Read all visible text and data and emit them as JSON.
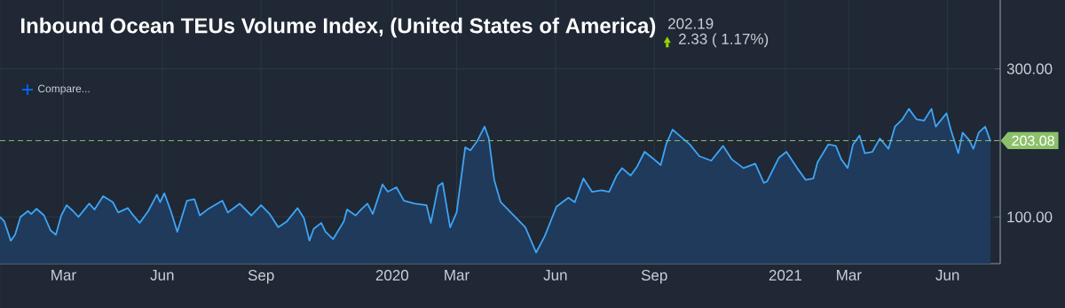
{
  "chart_data": {
    "type": "area",
    "title": "Inbound Ocean TEUs Volume Index, (United States of America)",
    "annotations": [
      "202.19",
      "2.33 ( 1.17%)",
      "Compare..."
    ],
    "x": [
      "2019-01-01",
      "2019-01-05",
      "2019-01-11",
      "2019-01-15",
      "2019-01-20",
      "2019-01-27",
      "2019-01-30",
      "2019-02-04",
      "2019-02-11",
      "2019-02-17",
      "2019-02-22",
      "2019-02-27",
      "2019-03-04",
      "2019-03-10",
      "2019-03-15",
      "2019-03-25",
      "2019-03-30",
      "2019-04-07",
      "2019-04-16",
      "2019-04-21",
      "2019-04-30",
      "2019-05-04",
      "2019-05-11",
      "2019-05-19",
      "2019-05-27",
      "2019-05-30",
      "2019-06-03",
      "2019-06-09",
      "2019-06-15",
      "2019-06-24",
      "2019-07-01",
      "2019-07-06",
      "2019-07-13",
      "2019-07-27",
      "2019-08-01",
      "2019-08-12",
      "2019-08-23",
      "2019-09-01",
      "2019-09-09",
      "2019-09-17",
      "2019-09-25",
      "2019-10-05",
      "2019-10-11",
      "2019-10-16",
      "2019-10-20",
      "2019-10-27",
      "2019-10-31",
      "2019-11-07",
      "2019-11-17",
      "2019-11-20",
      "2019-11-28",
      "2019-12-03",
      "2019-12-09",
      "2019-12-14",
      "2019-12-23",
      "2019-12-28",
      "2020-01-05",
      "2020-01-12",
      "2020-01-22",
      "2020-02-02",
      "2020-02-06",
      "2020-02-13",
      "2020-02-17",
      "2020-02-24",
      "2020-03-01",
      "2020-03-09",
      "2020-03-14",
      "2020-03-20",
      "2020-03-27",
      "2020-03-31",
      "2020-04-05",
      "2020-04-11",
      "2020-05-04",
      "2020-05-14",
      "2020-05-22",
      "2020-06-02",
      "2020-06-13",
      "2020-06-19",
      "2020-06-27",
      "2020-07-05",
      "2020-07-14",
      "2020-07-21",
      "2020-07-28",
      "2020-08-02",
      "2020-08-10",
      "2020-08-16",
      "2020-08-23",
      "2020-08-30",
      "2020-09-07",
      "2020-09-12",
      "2020-09-18",
      "2020-09-26",
      "2020-10-04",
      "2020-10-13",
      "2020-10-24",
      "2020-11-04",
      "2020-11-12",
      "2020-11-23",
      "2020-12-04",
      "2020-12-12",
      "2020-12-15",
      "2020-12-26",
      "2021-01-02",
      "2021-01-12",
      "2021-01-20",
      "2021-01-27",
      "2021-01-31",
      "2021-02-10",
      "2021-02-17",
      "2021-02-22",
      "2021-02-28",
      "2021-03-05",
      "2021-03-11",
      "2021-03-16",
      "2021-03-23",
      "2021-03-30",
      "2021-04-07",
      "2021-04-13",
      "2021-04-20",
      "2021-04-26",
      "2021-05-03",
      "2021-05-10",
      "2021-05-17",
      "2021-05-21",
      "2021-05-31",
      "2021-06-04",
      "2021-06-11",
      "2021-06-15",
      "2021-06-21",
      "2021-06-25",
      "2021-06-30",
      "2021-07-06",
      "2021-07-11"
    ],
    "series": [
      {
        "color": "#3ea5f6",
        "values": [
          100,
          94,
          68,
          76,
          100,
          108,
          104,
          111,
          102,
          82,
          76,
          102,
          116,
          108,
          100,
          118,
          110,
          128,
          120,
          106,
          112,
          104,
          92,
          108,
          130,
          120,
          132,
          108,
          80,
          122,
          124,
          102,
          110,
          122,
          106,
          118,
          102,
          116,
          104,
          86,
          94,
          112,
          98,
          68,
          84,
          92,
          80,
          70,
          94,
          110,
          102,
          110,
          118,
          104,
          144,
          134,
          140,
          122,
          118,
          116,
          92,
          142,
          146,
          86,
          106,
          194,
          190,
          202,
          222,
          206,
          150,
          120,
          86,
          52,
          74,
          114,
          126,
          120,
          152,
          134,
          136,
          134,
          156,
          166,
          156,
          168,
          188,
          180,
          170,
          198,
          218,
          208,
          198,
          182,
          176,
          196,
          178,
          166,
          172,
          146,
          148,
          180,
          188,
          166,
          150,
          152,
          174,
          198,
          196,
          178,
          166,
          198,
          210,
          186,
          188,
          206,
          192,
          222,
          232,
          246,
          232,
          230,
          246,
          222,
          240,
          218,
          186,
          214,
          204,
          192,
          214,
          222,
          202
        ]
      }
    ],
    "xlim": [
      "2019-01-01",
      "2021-07-20"
    ],
    "xticks": [
      {
        "value": "2019-03-01",
        "label": "Mar"
      },
      {
        "value": "2019-06-01",
        "label": "Jun"
      },
      {
        "value": "2019-09-01",
        "label": "Sep"
      },
      {
        "value": "2020-01-01",
        "label": "2020"
      },
      {
        "value": "2020-03-01",
        "label": "Mar"
      },
      {
        "value": "2020-06-01",
        "label": "Jun"
      },
      {
        "value": "2020-09-01",
        "label": "Sep"
      },
      {
        "value": "2021-01-01",
        "label": "2021"
      },
      {
        "value": "2021-03-01",
        "label": "Mar"
      },
      {
        "value": "2021-06-01",
        "label": "Jun"
      }
    ],
    "ylim": [
      37,
      393
    ],
    "yticks": [
      {
        "value": 100,
        "label": "100.00"
      },
      {
        "value": 300,
        "label": "300.00"
      }
    ],
    "grid": true,
    "ref_lines": [
      {
        "axis": "y",
        "value": 203.08,
        "label": "203.08",
        "color": "#8dc06a",
        "line_style": "dashed"
      }
    ]
  }
}
